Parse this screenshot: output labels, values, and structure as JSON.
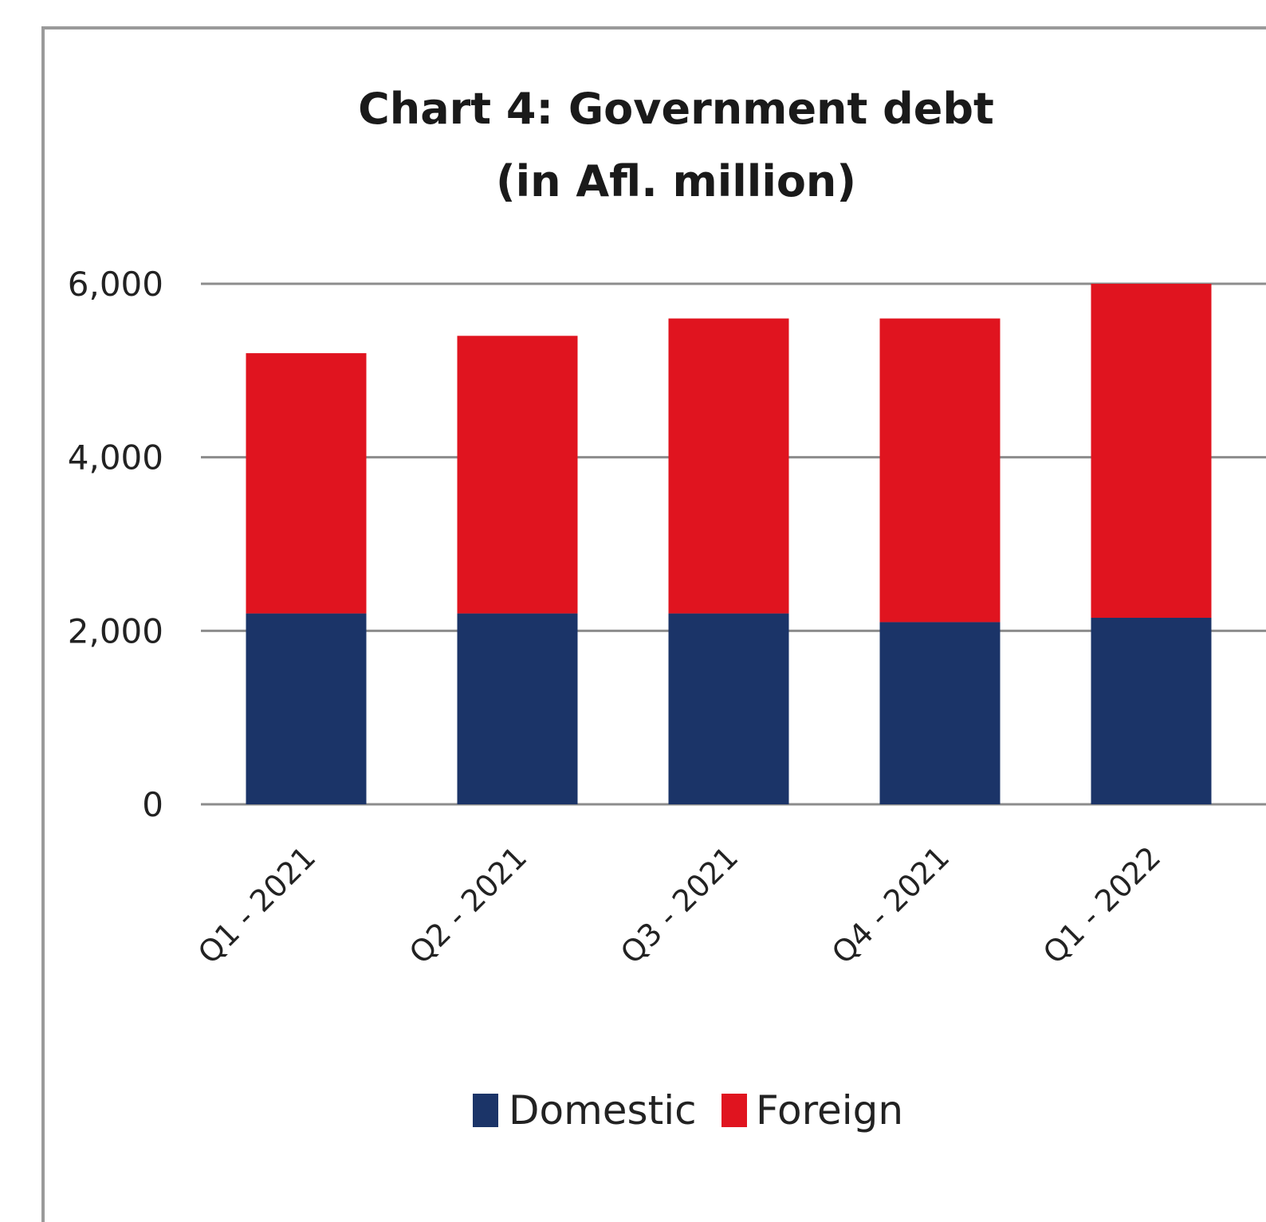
{
  "chart_data": {
    "type": "bar",
    "stacked": true,
    "title": "Chart 4: Government debt",
    "subtitle": "(in Afl. million)",
    "categories": [
      "Q1 - 2021",
      "Q2 - 2021",
      "Q3 - 2021",
      "Q4 - 2021",
      "Q1 - 2022"
    ],
    "series": [
      {
        "name": "Domestic",
        "color": "#1b3468",
        "values": [
          2200,
          2200,
          2200,
          2100,
          2150
        ]
      },
      {
        "name": "Foreign",
        "color": "#e0141f",
        "values": [
          3000,
          3200,
          3400,
          3500,
          3850
        ]
      }
    ],
    "ylim": [
      0,
      6000
    ],
    "yticks": [
      0,
      2000,
      4000,
      6000
    ],
    "ytick_labels": [
      "0",
      "2,000",
      "4,000",
      "6,000"
    ],
    "xlabel": "",
    "ylabel": "",
    "grid": true,
    "legend_position": "bottom",
    "gridline_color": "#8c8c8c"
  }
}
